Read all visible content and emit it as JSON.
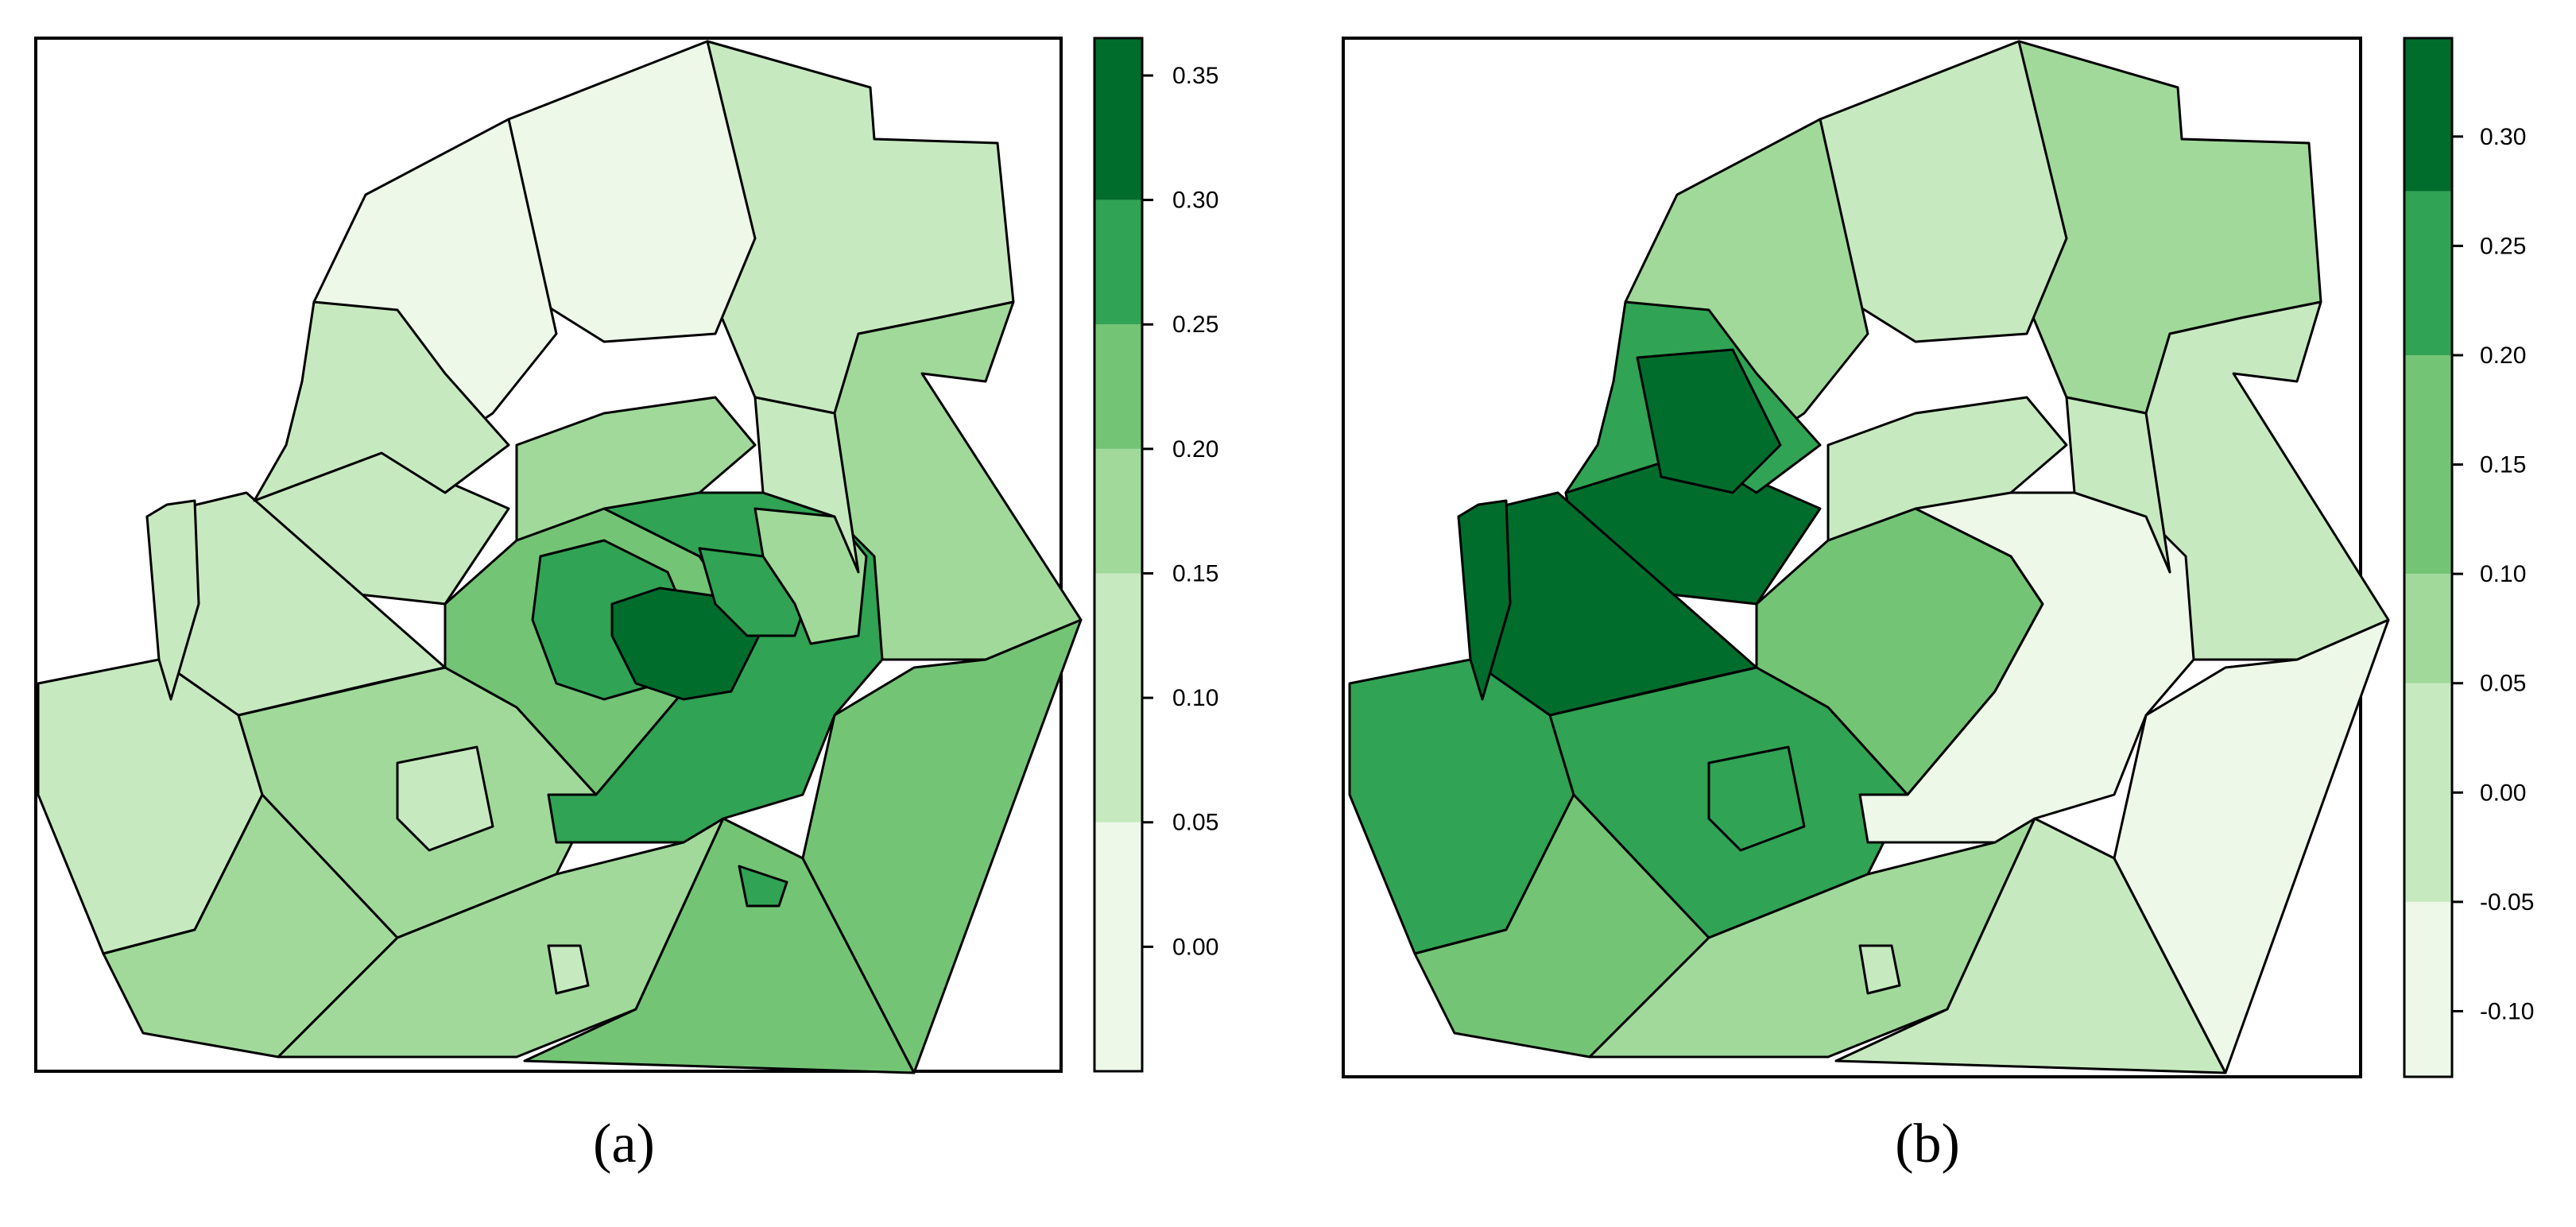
{
  "figure": {
    "palette": [
      "#edf8e9",
      "#c7e9c0",
      "#a1d99b",
      "#74c476",
      "#31a354",
      "#006d2c"
    ],
    "panels": [
      {
        "id": "a",
        "label": "(a)",
        "legend": {
          "ticks": [
            "0.35",
            "0.30",
            "0.25",
            "0.20",
            "0.15",
            "0.10",
            "0.05",
            "0.00"
          ],
          "bin_edges": [
            -0.05,
            0.05,
            0.15,
            0.2,
            0.25,
            0.3,
            0.365
          ]
        }
      },
      {
        "id": "b",
        "label": "(b)",
        "legend": {
          "ticks": [
            "0.30",
            "0.25",
            "0.20",
            "0.15",
            "0.10",
            "0.05",
            "0.00",
            "-0.05",
            "-0.10"
          ],
          "bin_edges": [
            -0.13,
            -0.05,
            0.05,
            0.1,
            0.2,
            0.275,
            0.345
          ]
        }
      }
    ]
  }
}
